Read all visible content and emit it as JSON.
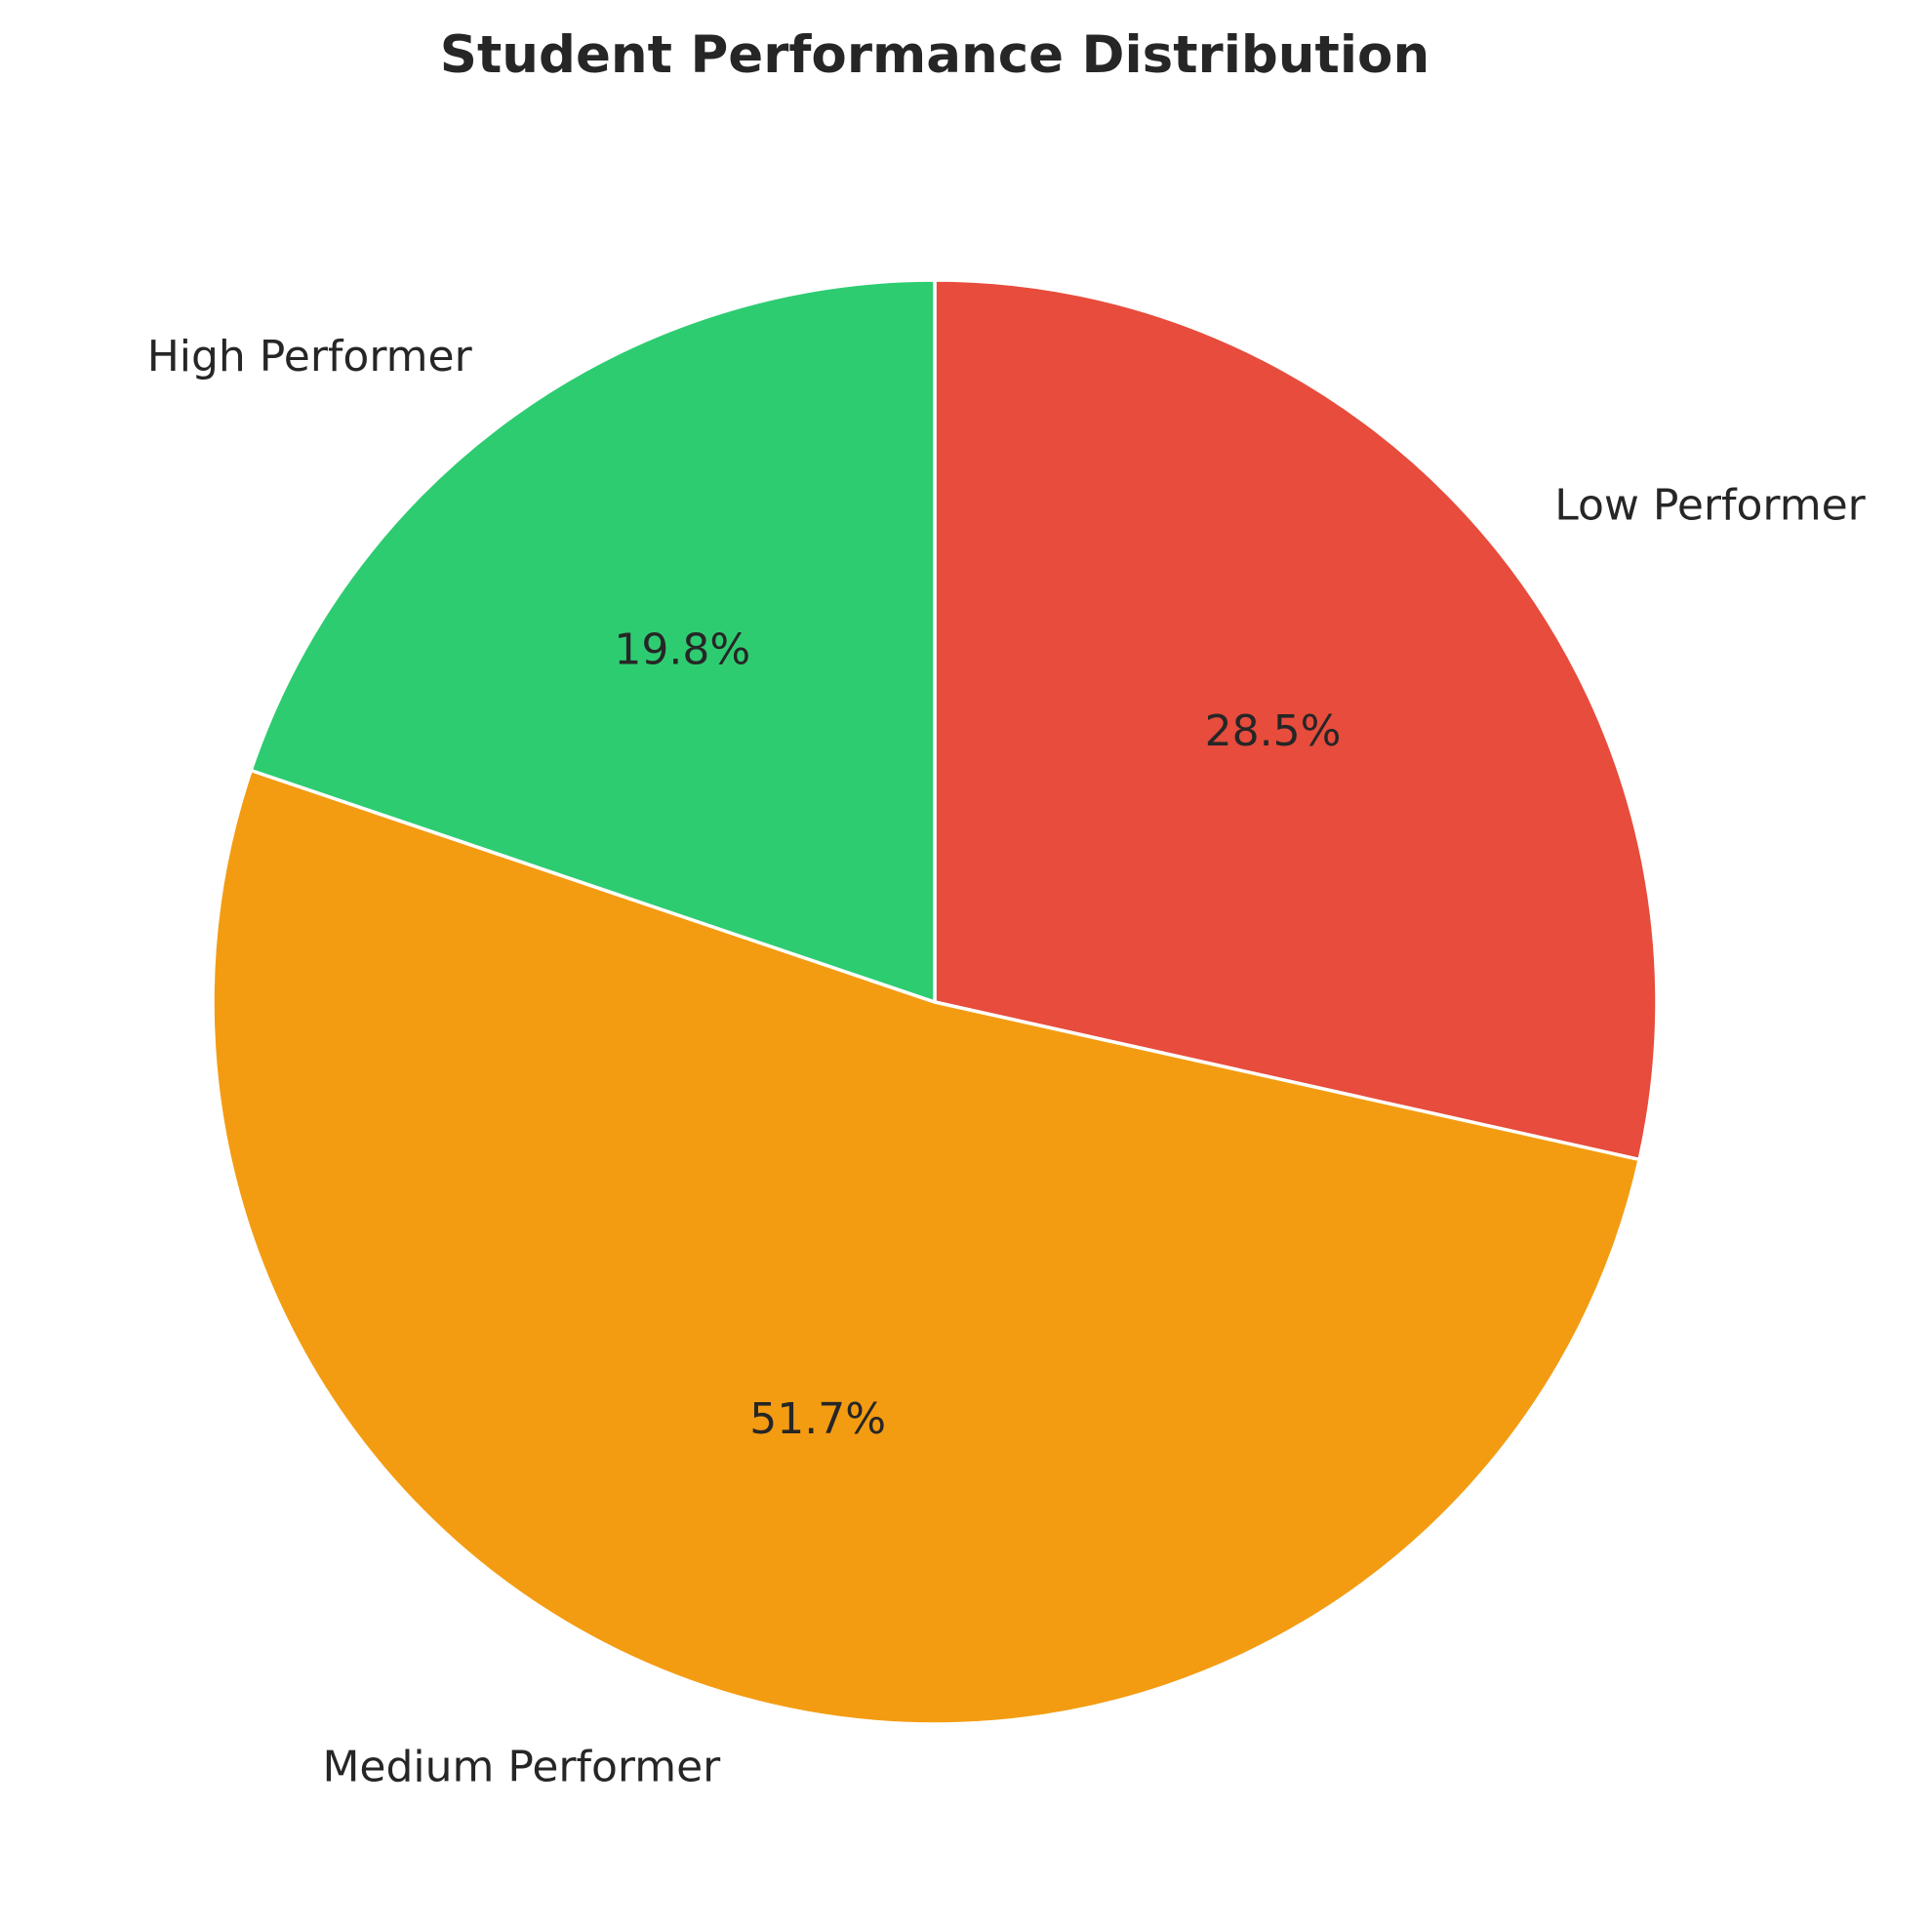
{
  "chart_data": {
    "type": "pie",
    "title": "Student Performance Distribution",
    "categories": [
      "Low Performer",
      "Medium Performer",
      "High Performer"
    ],
    "values": [
      28.5,
      51.7,
      19.8
    ],
    "value_labels": [
      "28.5%",
      "51.7%",
      "19.8%"
    ],
    "colors": [
      "#e74c3c",
      "#f39c12",
      "#2ecc71"
    ],
    "start_angle": "90 degrees (12 o'clock)",
    "direction": "clockwise",
    "slice_edge_color": "#ffffff"
  }
}
